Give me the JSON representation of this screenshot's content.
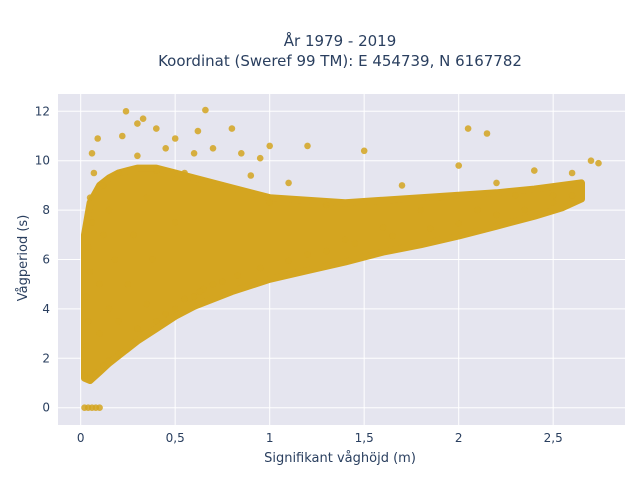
{
  "chart_data": {
    "type": "scatter",
    "title_line1": "År 1979 - 2019",
    "title_line2": "Koordinat (Sweref 99 TM): E 454739, N 6167782",
    "xlabel": "Signifikant våghöjd (m)",
    "ylabel": "Vågperiod (s)",
    "xlim": [
      -0.12,
      2.88
    ],
    "ylim": [
      -0.7,
      12.7
    ],
    "x_ticks": [
      0,
      0.5,
      1,
      1.5,
      2,
      2.5
    ],
    "x_tick_labels": [
      "0",
      "0,5",
      "1",
      "1,5",
      "2",
      "2,5"
    ],
    "y_ticks": [
      0,
      2,
      4,
      6,
      8,
      10,
      12
    ],
    "y_tick_labels": [
      "0",
      "2",
      "4",
      "6",
      "8",
      "10",
      "12"
    ],
    "grid": true,
    "colors": {
      "marker": "#D4A520",
      "plot_bg": "#E5E5EF",
      "grid": "#FFFFFF",
      "text": "#2A3F5F"
    },
    "series": [
      {
        "points": [
          [
            0.02,
            0
          ],
          [
            0.04,
            0
          ],
          [
            0.06,
            0
          ],
          [
            0.08,
            0
          ],
          [
            0.1,
            0
          ],
          [
            0.02,
            1.3
          ],
          [
            0.05,
            1.2
          ],
          [
            0.08,
            1.4
          ],
          [
            0.12,
            1.7
          ],
          [
            0.15,
            1.9
          ],
          [
            0.2,
            2.2
          ],
          [
            0.03,
            2.5
          ],
          [
            0.04,
            3.5
          ],
          [
            0.03,
            4.5
          ],
          [
            0.05,
            5.5
          ],
          [
            0.04,
            6.5
          ],
          [
            0.06,
            7.5
          ],
          [
            0.05,
            8.5
          ],
          [
            0.07,
            9.5
          ],
          [
            0.06,
            10.3
          ],
          [
            0.09,
            10.9
          ],
          [
            0.1,
            3.0
          ],
          [
            0.1,
            5.0
          ],
          [
            0.12,
            7.0
          ],
          [
            0.12,
            9.0
          ],
          [
            0.15,
            4.0
          ],
          [
            0.15,
            8.0
          ],
          [
            0.18,
            6.0
          ],
          [
            0.2,
            3.5
          ],
          [
            0.2,
            9.5
          ],
          [
            0.22,
            11.0
          ],
          [
            0.24,
            12.0
          ],
          [
            0.25,
            5.0
          ],
          [
            0.28,
            7.0
          ],
          [
            0.3,
            3.2
          ],
          [
            0.3,
            10.2
          ],
          [
            0.3,
            11.5
          ],
          [
            0.33,
            11.7
          ],
          [
            0.35,
            4.2
          ],
          [
            0.35,
            8.5
          ],
          [
            0.38,
            6.0
          ],
          [
            0.4,
            3.5
          ],
          [
            0.4,
            9.6
          ],
          [
            0.4,
            11.3
          ],
          [
            0.45,
            3.8
          ],
          [
            0.45,
            10.5
          ],
          [
            0.5,
            4.0
          ],
          [
            0.5,
            7.5
          ],
          [
            0.5,
            10.9
          ],
          [
            0.55,
            4.4
          ],
          [
            0.55,
            9.5
          ],
          [
            0.6,
            4.5
          ],
          [
            0.6,
            10.3
          ],
          [
            0.62,
            11.2
          ],
          [
            0.65,
            4.8
          ],
          [
            0.66,
            12.05
          ],
          [
            0.7,
            5.0
          ],
          [
            0.7,
            10.5
          ],
          [
            0.75,
            9.0
          ],
          [
            0.8,
            11.3
          ],
          [
            0.85,
            10.3
          ],
          [
            0.9,
            9.4
          ],
          [
            0.95,
            10.1
          ],
          [
            1.0,
            8.3
          ],
          [
            1.0,
            10.6
          ],
          [
            1.1,
            9.1
          ],
          [
            1.2,
            6.2
          ],
          [
            1.2,
            10.6
          ],
          [
            1.3,
            8.2
          ],
          [
            1.4,
            6.8
          ],
          [
            1.5,
            10.4
          ],
          [
            1.6,
            7.3
          ],
          [
            1.7,
            9.0
          ],
          [
            1.8,
            8.0
          ],
          [
            1.9,
            8.5
          ],
          [
            2.0,
            9.8
          ],
          [
            2.05,
            11.3
          ],
          [
            2.1,
            8.0
          ],
          [
            2.15,
            11.1
          ],
          [
            2.2,
            9.1
          ],
          [
            2.3,
            8.6
          ],
          [
            2.4,
            9.6
          ],
          [
            2.5,
            8.6
          ],
          [
            2.6,
            9.5
          ],
          [
            2.7,
            10.0
          ],
          [
            2.74,
            9.9
          ],
          [
            0.63,
            4.7
          ],
          [
            0.75,
            5.1
          ],
          [
            0.83,
            5.35
          ],
          [
            0.95,
            5.65
          ],
          [
            1.1,
            5.95
          ],
          [
            1.3,
            6.35
          ],
          [
            1.45,
            6.65
          ],
          [
            1.65,
            6.95
          ],
          [
            1.85,
            7.25
          ],
          [
            2.0,
            7.45
          ],
          [
            2.2,
            7.8
          ],
          [
            2.35,
            8.0
          ],
          [
            2.5,
            8.3
          ],
          [
            2.6,
            8.6
          ]
        ]
      }
    ],
    "density_band": {
      "x": [
        0.02,
        0.05,
        0.1,
        0.15,
        0.2,
        0.3,
        0.4,
        0.5,
        0.6,
        0.8,
        1.0,
        1.2,
        1.4,
        1.6,
        1.8,
        2.0,
        2.2,
        2.4,
        2.55,
        2.65
      ],
      "y_low": [
        1.2,
        1.1,
        1.45,
        1.8,
        2.1,
        2.7,
        3.2,
        3.7,
        4.1,
        4.7,
        5.2,
        5.55,
        5.9,
        6.3,
        6.6,
        6.95,
        7.35,
        7.75,
        8.1,
        8.45
      ],
      "y_high": [
        7.0,
        8.3,
        9.0,
        9.3,
        9.5,
        9.7,
        9.7,
        9.5,
        9.3,
        8.9,
        8.5,
        8.4,
        8.3,
        8.4,
        8.5,
        8.6,
        8.7,
        8.85,
        9.0,
        9.1
      ]
    }
  }
}
